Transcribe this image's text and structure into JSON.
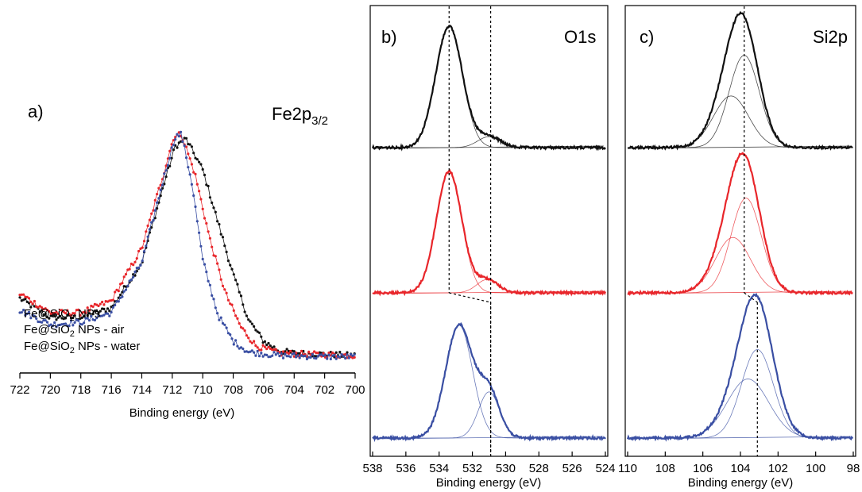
{
  "chart_data": [
    {
      "type": "scatter",
      "panel_label": "a)",
      "title_main": "Fe2p",
      "title_sub": "3/2",
      "xlabel": "Binding energy (eV)",
      "xlim": [
        722,
        700
      ],
      "xticks": [
        "722",
        "720",
        "718",
        "716",
        "714",
        "712",
        "710",
        "708",
        "706",
        "704",
        "702",
        "700"
      ],
      "grid": false,
      "legend": [
        {
          "text": "Fe@SiO",
          "sub": "2",
          "rest": " NPs",
          "color": "#111111"
        },
        {
          "text": "Fe@SiO",
          "sub": "2",
          "rest": " NPs - air",
          "color": "#e8262b"
        },
        {
          "text": "Fe@SiO",
          "sub": "2",
          "rest": " NPs - water",
          "color": "#3a4fa3"
        }
      ],
      "series": [
        {
          "color": "#111111",
          "points": [
            [
              722,
              0.28
            ],
            [
              720,
              0.2
            ],
            [
              718,
              0.2
            ],
            [
              716,
              0.24
            ],
            [
              714,
              0.43
            ],
            [
              712.5,
              0.77
            ],
            [
              711.8,
              0.92
            ],
            [
              711.1,
              0.95
            ],
            [
              710,
              0.82
            ],
            [
              709,
              0.6
            ],
            [
              708,
              0.38
            ],
            [
              707,
              0.19
            ],
            [
              706,
              0.1
            ],
            [
              705,
              0.06
            ],
            [
              704,
              0.05
            ],
            [
              702,
              0.045
            ],
            [
              700,
              0.04
            ]
          ]
        },
        {
          "color": "#e8262b",
          "points": [
            [
              722,
              0.3
            ],
            [
              720,
              0.22
            ],
            [
              718,
              0.22
            ],
            [
              716,
              0.27
            ],
            [
              714,
              0.49
            ],
            [
              712.5,
              0.82
            ],
            [
              711.9,
              0.96
            ],
            [
              711.4,
              0.97
            ],
            [
              710.5,
              0.8
            ],
            [
              709.5,
              0.52
            ],
            [
              708.5,
              0.3
            ],
            [
              707.5,
              0.16
            ],
            [
              706.5,
              0.08
            ],
            [
              705,
              0.05
            ],
            [
              703,
              0.045
            ],
            [
              700,
              0.04
            ]
          ]
        },
        {
          "color": "#3a4fa3",
          "points": [
            [
              722,
              0.23
            ],
            [
              720,
              0.17
            ],
            [
              718,
              0.18
            ],
            [
              716,
              0.22
            ],
            [
              714,
              0.43
            ],
            [
              712.5,
              0.8
            ],
            [
              711.8,
              0.96
            ],
            [
              711.4,
              0.97
            ],
            [
              710.7,
              0.76
            ],
            [
              710,
              0.44
            ],
            [
              709,
              0.21
            ],
            [
              708,
              0.1
            ],
            [
              707,
              0.055
            ],
            [
              705,
              0.04
            ],
            [
              702,
              0.035
            ],
            [
              700,
              0.035
            ]
          ]
        }
      ]
    },
    {
      "type": "line",
      "panel_label": "b)",
      "title_main": "O1s",
      "xlabel": "Binding energy (eV)",
      "xlim": [
        538,
        524
      ],
      "xticks": [
        "538",
        "536",
        "534",
        "532",
        "530",
        "528",
        "526",
        "524"
      ],
      "grid": false,
      "reference_lines_x": [
        533.4,
        530.9
      ],
      "series": [
        {
          "color": "#111111",
          "components": [
            {
              "center": 533.4,
              "amplitude": 1.0,
              "fwhm": 1.9
            },
            {
              "center": 531.0,
              "amplitude": 0.09,
              "fwhm": 1.6
            }
          ]
        },
        {
          "color": "#e8262b",
          "components": [
            {
              "center": 533.4,
              "amplitude": 1.0,
              "fwhm": 1.8
            },
            {
              "center": 531.1,
              "amplitude": 0.11,
              "fwhm": 1.5
            }
          ]
        },
        {
          "color": "#3a4fa3",
          "components": [
            {
              "center": 532.8,
              "amplitude": 0.93,
              "fwhm": 1.9
            },
            {
              "center": 531.0,
              "amplitude": 0.38,
              "fwhm": 1.5
            }
          ]
        }
      ]
    },
    {
      "type": "line",
      "panel_label": "c)",
      "title_main": "Si2p",
      "xlabel": "Binding energy (eV)",
      "xlim": [
        110,
        98
      ],
      "xticks": [
        "110",
        "108",
        "106",
        "104",
        "102",
        "100",
        "98"
      ],
      "grid": false,
      "reference_lines_x": [
        103.8,
        103.1
      ],
      "series": [
        {
          "color": "#111111",
          "components": [
            {
              "center": 103.8,
              "amplitude": 0.75,
              "fwhm": 1.9
            },
            {
              "center": 104.5,
              "amplitude": 0.42,
              "fwhm": 2.2
            }
          ]
        },
        {
          "color": "#e8262b",
          "components": [
            {
              "center": 103.7,
              "amplitude": 0.77,
              "fwhm": 1.9
            },
            {
              "center": 104.4,
              "amplitude": 0.45,
              "fwhm": 2.2
            }
          ]
        },
        {
          "color": "#3a4fa3",
          "components": [
            {
              "center": 103.1,
              "amplitude": 0.72,
              "fwhm": 2.0
            },
            {
              "center": 103.6,
              "amplitude": 0.48,
              "fwhm": 2.6
            }
          ]
        }
      ]
    }
  ]
}
